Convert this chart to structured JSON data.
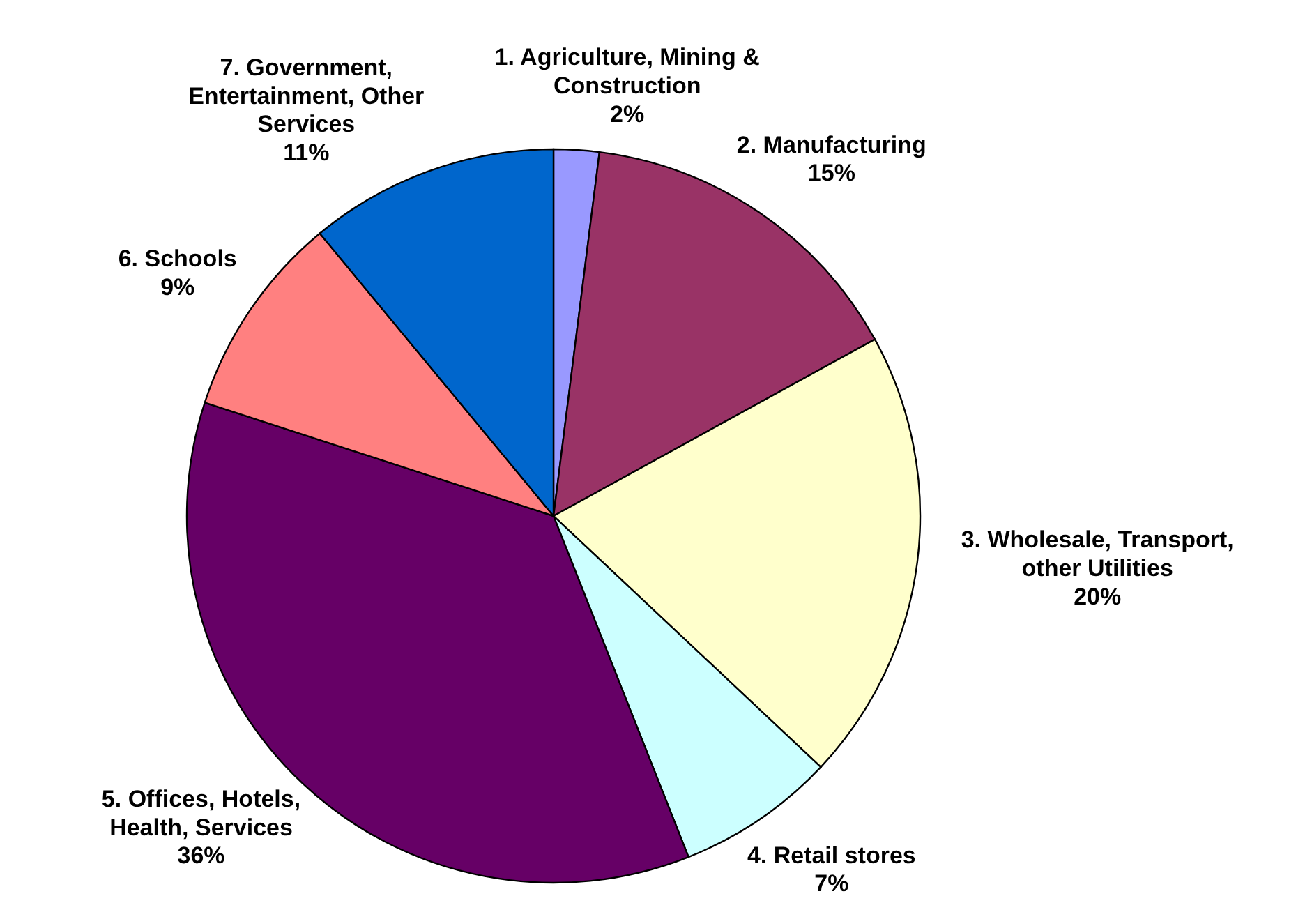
{
  "chart_data": {
    "type": "pie",
    "categories": [
      "1. Agriculture, Mining & Construction",
      "2. Manufacturing",
      "3. Wholesale, Transport, other Utilities",
      "4. Retail stores",
      "5. Offices, Hotels, Health, Services",
      "6. Schools",
      "7. Government, Entertainment, Other Services"
    ],
    "values": [
      2,
      15,
      20,
      7,
      36,
      9,
      11
    ],
    "value_labels": [
      "2%",
      "15%",
      "20%",
      "7%",
      "36%",
      "9%",
      "11%"
    ],
    "colors": [
      "#9999ff",
      "#993366",
      "#ffffcc",
      "#ccffff",
      "#660066",
      "#ff8080",
      "#0066cc"
    ]
  }
}
